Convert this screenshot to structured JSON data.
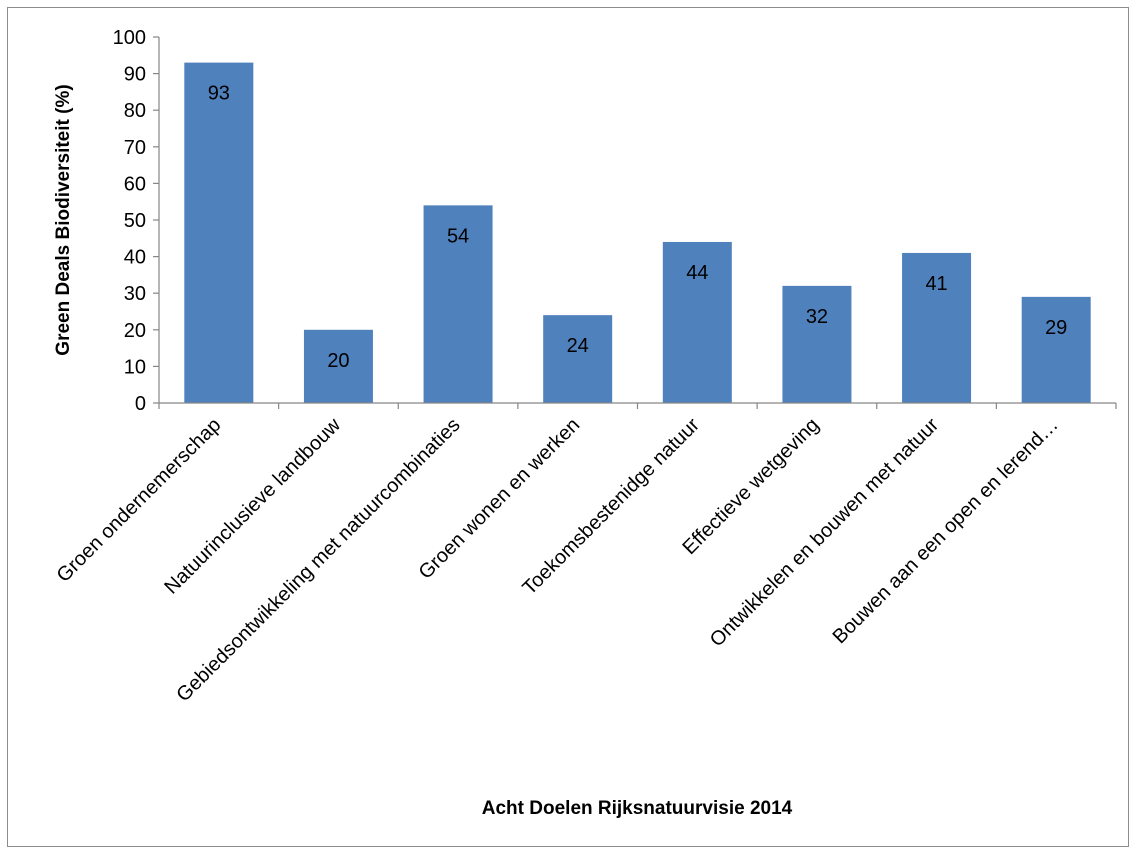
{
  "chart_data": {
    "type": "bar",
    "title": "",
    "xlabel": "Acht Doelen Rijksnatuurvisie 2014",
    "ylabel": "Green Deals Biodiversiteit (%)",
    "categories": [
      "Groen ondernemerschap",
      "Natuurinclusieve landbouw",
      "Gebiedsontwikkeling met natuurcombinaties",
      "Groen wonen en werken",
      "Toekomsbestenidge natuur",
      "Effectieve wetgeving",
      "Ontwikkelen en bouwen met natuur",
      "Bouwen aan een open en lerend…"
    ],
    "values": [
      93,
      20,
      54,
      24,
      44,
      32,
      41,
      29
    ],
    "data_labels": [
      "93",
      "20",
      "54",
      "24",
      "44",
      "32",
      "41",
      "29"
    ],
    "ylim": [
      0,
      100
    ],
    "yticks": [
      "0",
      "10",
      "20",
      "30",
      "40",
      "50",
      "60",
      "70",
      "80",
      "90",
      "100"
    ],
    "grid": false,
    "legend": "none",
    "bar_color": "#4f81bd"
  }
}
